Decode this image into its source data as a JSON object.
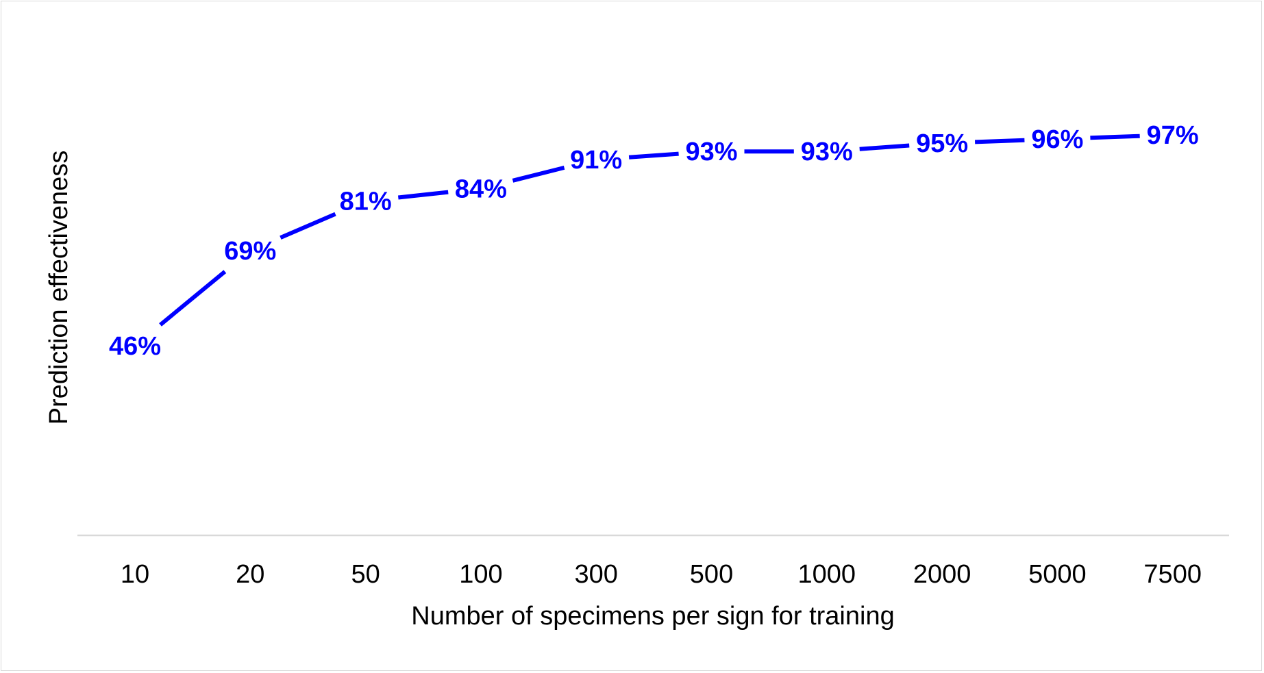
{
  "chart_data": {
    "type": "line",
    "title": "",
    "xlabel": "Number of specimens per sign for training",
    "ylabel": "Prediction effectiveness",
    "categories": [
      "10",
      "20",
      "50",
      "100",
      "300",
      "500",
      "1000",
      "2000",
      "5000",
      "7500"
    ],
    "series": [
      {
        "values": [
          46,
          69,
          81,
          84,
          91,
          93,
          93,
          95,
          96,
          97
        ],
        "data_labels": [
          "46%",
          "69%",
          "81%",
          "84%",
          "91%",
          "93%",
          "93%",
          "95%",
          "96%",
          "97%"
        ],
        "color": "#0000ff"
      }
    ],
    "ylim": [
      0,
      100
    ],
    "y_ticks_visible": false,
    "grid": false,
    "legend": "none",
    "axis_color": "#d9d9d9"
  }
}
